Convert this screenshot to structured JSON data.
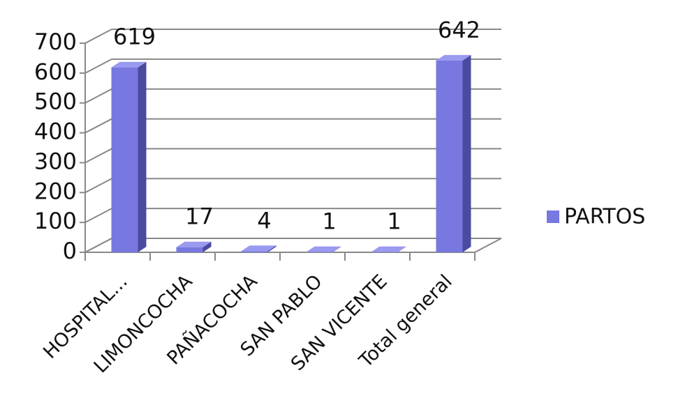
{
  "chart_data": {
    "type": "bar3d",
    "categories": [
      "HOSPITAL...",
      "LIMONCOCHA",
      "PAÑACOCHA",
      "SAN PABLO",
      "SAN VICENTE",
      "Total general"
    ],
    "series": [
      {
        "name": "PARTOS",
        "color": "#7878e0",
        "values": [
          619,
          17,
          4,
          1,
          1,
          642
        ]
      }
    ],
    "ylim": [
      0,
      700
    ],
    "yticks": [
      0,
      100,
      200,
      300,
      400,
      500,
      600,
      700
    ],
    "grid": true,
    "legend": "right"
  }
}
